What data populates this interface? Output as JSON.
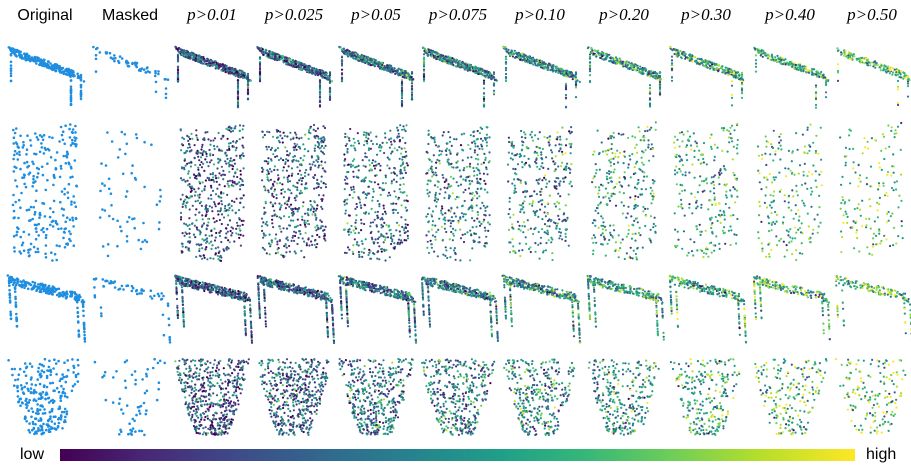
{
  "header": {
    "columns": [
      "Original",
      "Masked",
      "p>0.01",
      "p>0.025",
      "p>0.05",
      "p>0.075",
      "p>0.10",
      "p>0.20",
      "p>0.30",
      "p>0.40",
      "p>0.50"
    ]
  },
  "colorbar": {
    "low": "low",
    "high": "high"
  }
}
